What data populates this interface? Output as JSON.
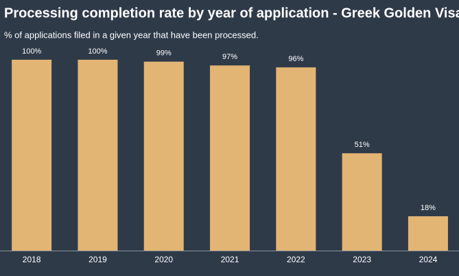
{
  "chart_data": {
    "type": "bar",
    "title": "Processing completion rate by year of application - Greek Golden Visa",
    "subtitle": "% of applications filed in a given year that have been processed.",
    "categories": [
      "2018",
      "2019",
      "2020",
      "2021",
      "2022",
      "2023",
      "2024"
    ],
    "values": [
      100,
      100,
      99,
      97,
      96,
      51,
      18
    ],
    "value_labels": [
      "100%",
      "100%",
      "99%",
      "97%",
      "96%",
      "51%",
      "18%"
    ],
    "color": "#e3b574"
  }
}
